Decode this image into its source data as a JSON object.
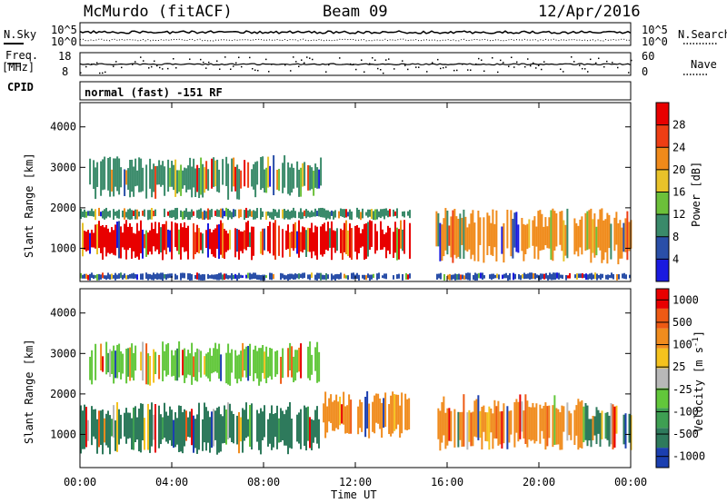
{
  "header": {
    "station": "McMurdo (fitACF)",
    "beam": "Beam 09",
    "date": "12/Apr/2016"
  },
  "mode_label": "normal (fast) -151 RF",
  "left_labels": {
    "nsky": "N.Sky",
    "freq_top": "Freq.",
    "freq_unit": "[MHz]",
    "cpid": "CPID"
  },
  "right_labels": {
    "nsearch": "N.Search",
    "nave": "Nave"
  },
  "noise_axis": {
    "left_top": "10^5",
    "left_bottom": "10^0",
    "right_top": "10^5",
    "right_bottom": "10^0"
  },
  "freq_axis": {
    "left_top": "18",
    "left_bottom": "8",
    "right_top": "60",
    "right_bottom": "0"
  },
  "x_axis": {
    "ticks": [
      "00:00",
      "04:00",
      "08:00",
      "12:00",
      "16:00",
      "20:00",
      "00:00"
    ],
    "label": "Time UT"
  },
  "chart_data": [
    {
      "type": "heatmap",
      "panel": "power",
      "ylabel": "Slant Range [km]",
      "yticks": [
        "1000",
        "2000",
        "3000",
        "4000"
      ],
      "ylim": [
        180,
        4600
      ],
      "xlim_hours": [
        0,
        24
      ],
      "colorbar": {
        "label": "Power [dB]",
        "ticks": [
          "4",
          "8",
          "12",
          "16",
          "20",
          "24",
          "28"
        ],
        "colors": [
          "#1a1ae0",
          "#2a4fa8",
          "#3a8a6a",
          "#6cc03a",
          "#e8c22a",
          "#f08a1a",
          "#ee3e14",
          "#e80000"
        ]
      },
      "data_gap_hours": [
        14.4,
        15.5
      ],
      "bands": [
        {
          "start_h": 0.0,
          "end_h": 14.4,
          "lo_km": 700,
          "hi_km": 1700,
          "color": "#e80000"
        },
        {
          "start_h": 0.0,
          "end_h": 14.4,
          "lo_km": 1700,
          "hi_km": 2000,
          "color": "#3a8a6a"
        },
        {
          "start_h": 0.4,
          "end_h": 10.5,
          "lo_km": 2200,
          "hi_km": 3300,
          "color": "#3a8a6a"
        },
        {
          "start_h": 15.5,
          "end_h": 24.0,
          "lo_km": 600,
          "hi_km": 2000,
          "color": "#f08a1a"
        },
        {
          "start_h": 0.0,
          "end_h": 24.0,
          "lo_km": 200,
          "hi_km": 400,
          "color": "#2a4fa8"
        }
      ]
    },
    {
      "type": "heatmap",
      "panel": "velocity",
      "ylabel": "Slant Range [km]",
      "yticks": [
        "1000",
        "2000",
        "3000",
        "4000"
      ],
      "ylim": [
        180,
        4600
      ],
      "xlim_hours": [
        0,
        24
      ],
      "colorbar": {
        "label": "Velocity [m s^-1]",
        "ticks": [
          "1000",
          "500",
          "100",
          "25",
          "-25",
          "-100",
          "-500",
          "-1000"
        ],
        "colors": [
          "#1b3fb0",
          "#2e7a5c",
          "#3e9f52",
          "#62c73b",
          "#b8b8b8",
          "#f5c21e",
          "#f08c1e",
          "#ee5a14",
          "#e80000"
        ]
      },
      "data_gap_hours": [
        14.4,
        15.5
      ],
      "bands": [
        {
          "start_h": 0.0,
          "end_h": 10.5,
          "lo_km": 500,
          "hi_km": 1800,
          "color": "#2e7a5c"
        },
        {
          "start_h": 10.5,
          "end_h": 14.4,
          "lo_km": 900,
          "hi_km": 2100,
          "color": "#f08c1e"
        },
        {
          "start_h": 15.5,
          "end_h": 22.0,
          "lo_km": 600,
          "hi_km": 2000,
          "color": "#f08c1e"
        },
        {
          "start_h": 22.0,
          "end_h": 24.0,
          "lo_km": 600,
          "hi_km": 1800,
          "color": "#2e7a5c"
        },
        {
          "start_h": 0.4,
          "end_h": 10.5,
          "lo_km": 2200,
          "hi_km": 3300,
          "color": "#62c73b"
        }
      ]
    }
  ]
}
